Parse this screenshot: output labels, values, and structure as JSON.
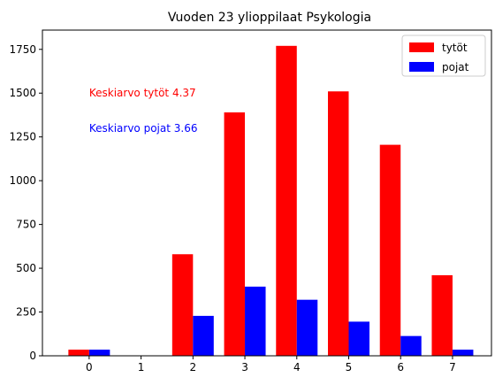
{
  "chart_data": {
    "type": "bar",
    "title": "Vuoden 23 ylioppilaat  Psykologia",
    "xlabel": "",
    "ylabel": "",
    "categories": [
      "0",
      "1",
      "2",
      "3",
      "4",
      "5",
      "6",
      "7"
    ],
    "xlim": [
      -0.9,
      7.75
    ],
    "ylim": [
      0,
      1860
    ],
    "yticks": [
      0,
      250,
      500,
      750,
      1000,
      1250,
      1500,
      1750
    ],
    "grid": false,
    "legend_position": "top-right",
    "series": [
      {
        "name": "tytöt",
        "color": "#ff0000",
        "values": [
          35,
          0,
          580,
          1390,
          1770,
          1510,
          1205,
          460
        ]
      },
      {
        "name": "pojat",
        "color": "#0000ff",
        "values": [
          35,
          0,
          228,
          395,
          320,
          195,
          113,
          35
        ]
      }
    ],
    "annotations": [
      {
        "text": "Keskiarvo tytöt 4.37",
        "color": "#ff0000",
        "x": 0,
        "y": 1500
      },
      {
        "text": "Keskiarvo pojat 3.66",
        "color": "#0000ff",
        "x": 0,
        "y": 1300
      }
    ]
  }
}
